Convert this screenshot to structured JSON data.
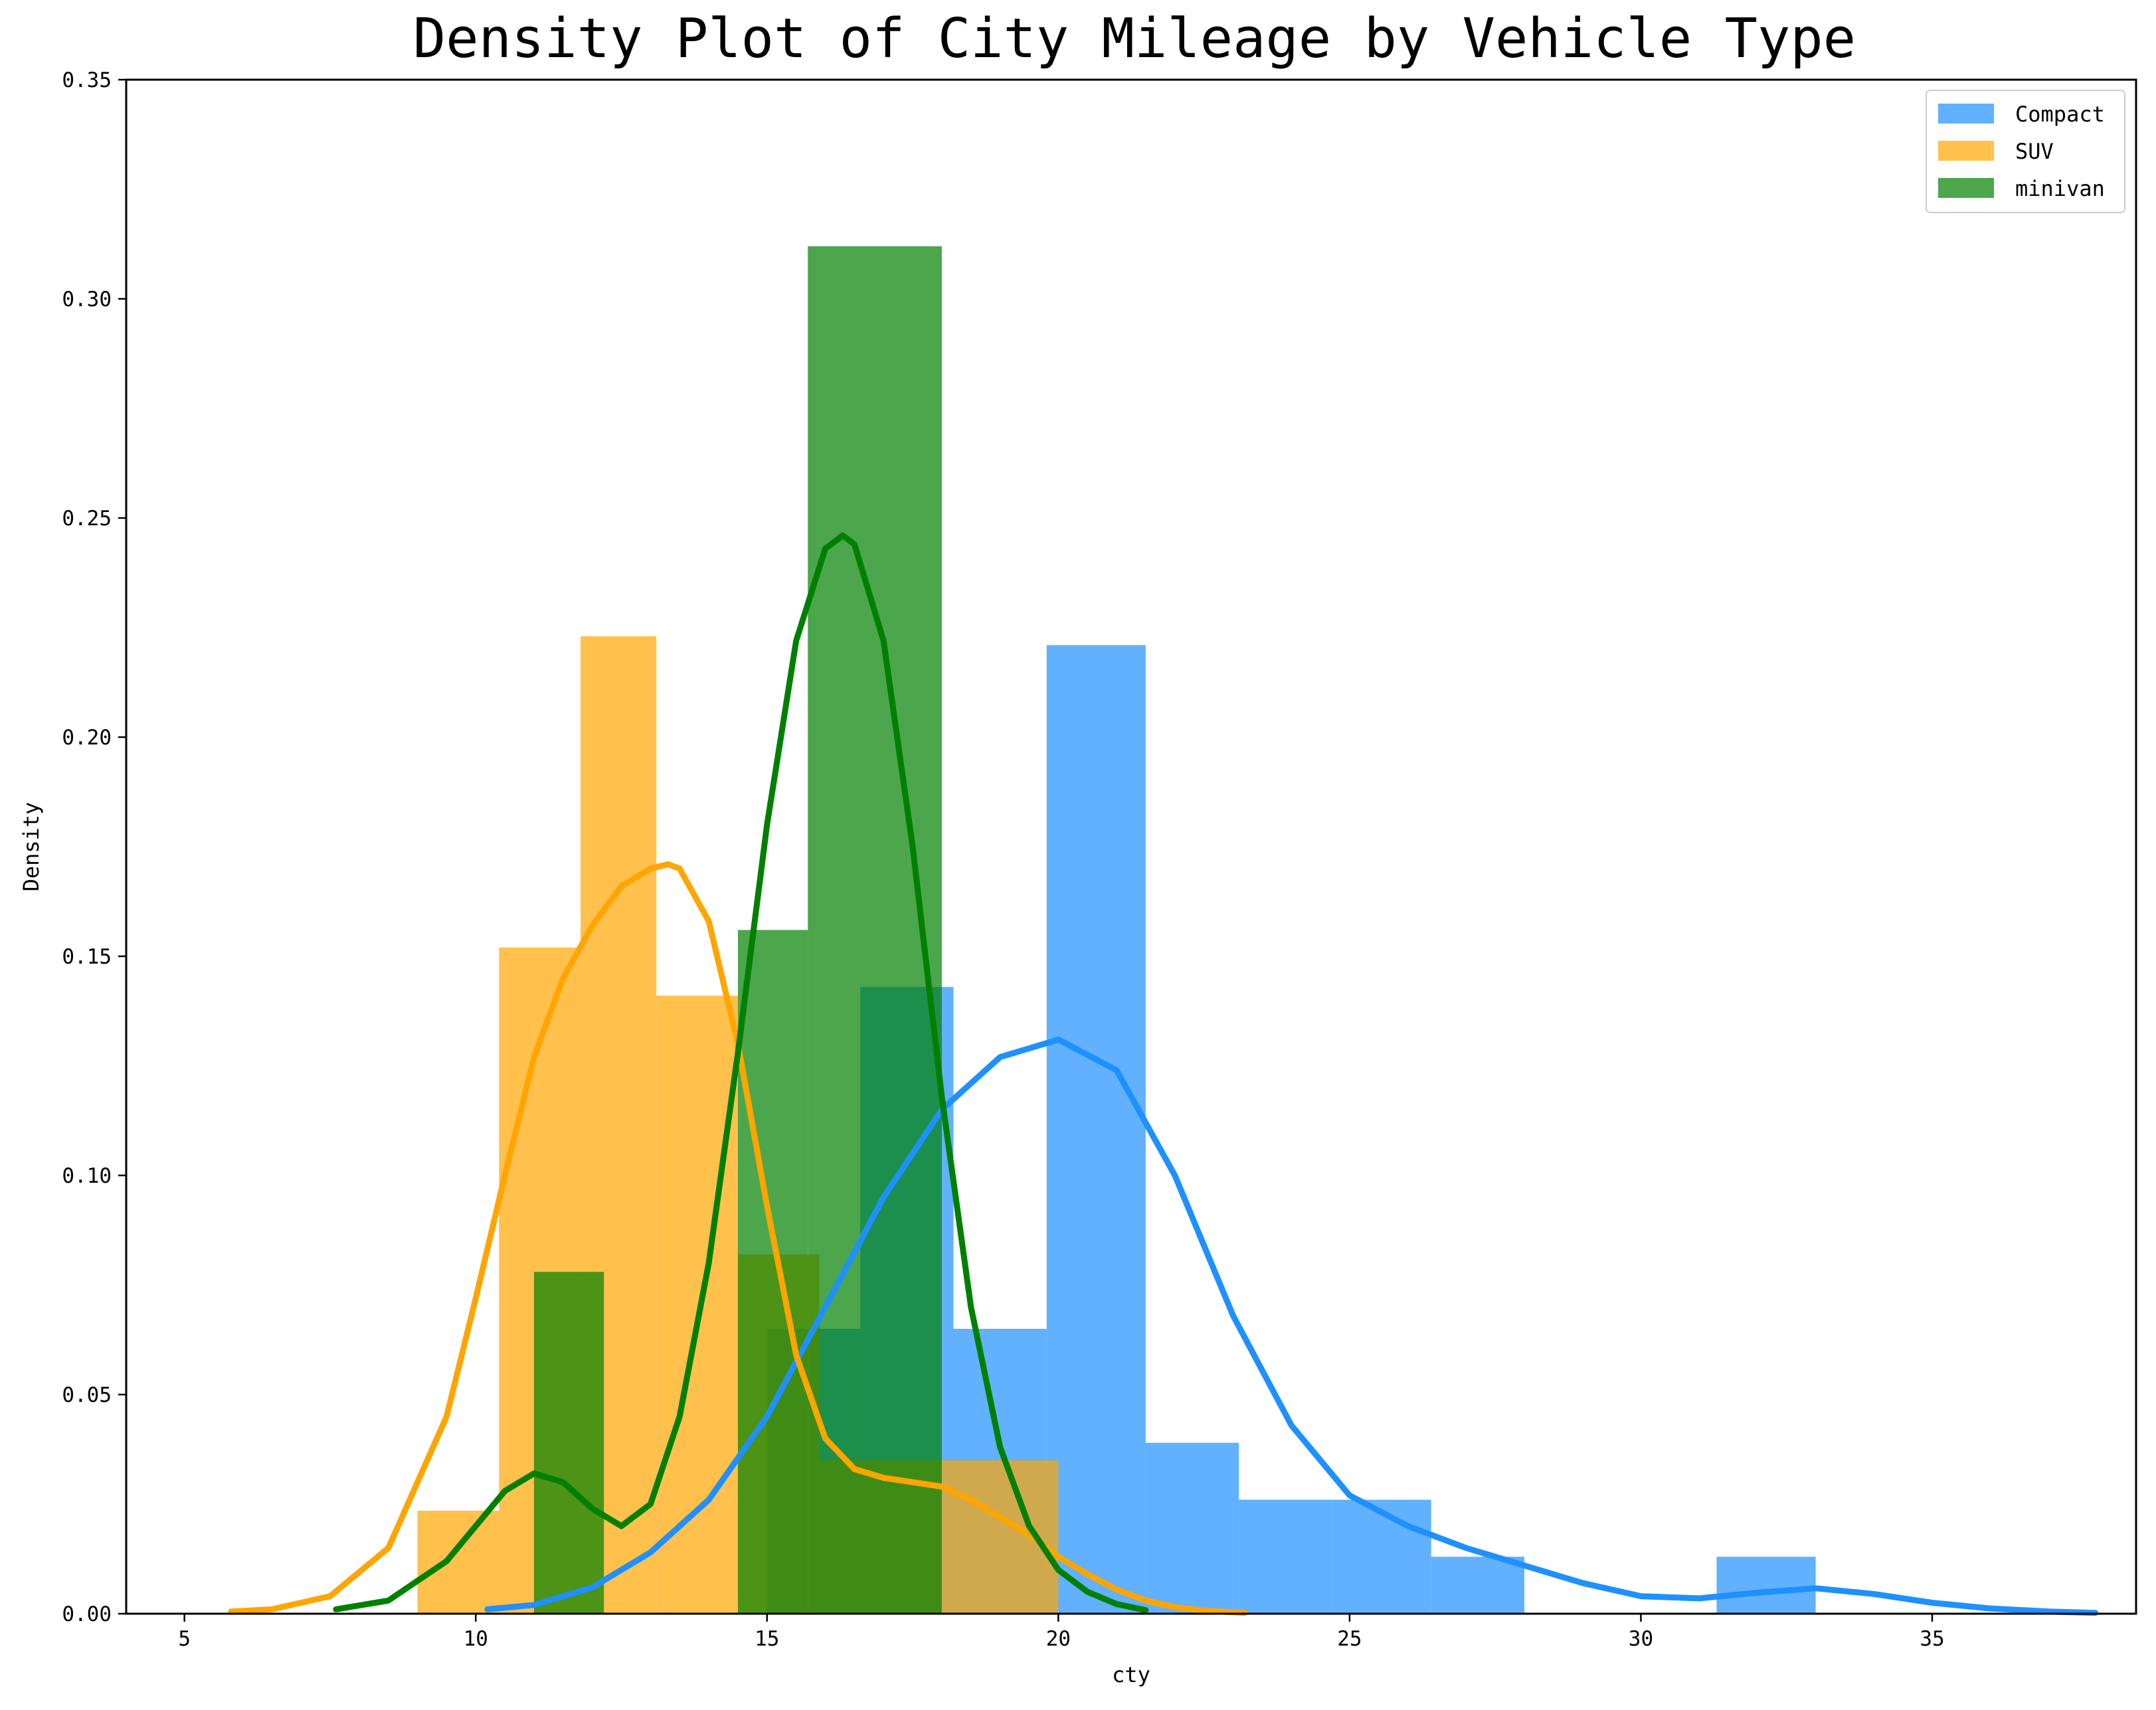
{
  "chart_data": {
    "type": "bar",
    "title": "Density Plot of City Mileage by Vehicle Type",
    "xlabel": "cty",
    "ylabel": "Density",
    "xlim": [
      4,
      38.5
    ],
    "ylim": [
      0,
      0.35
    ],
    "xticks": [
      5,
      10,
      15,
      20,
      25,
      30,
      35
    ],
    "xtick_labels": [
      "5",
      "10",
      "15",
      "20",
      "25",
      "30",
      "35"
    ],
    "yticks": [
      0,
      0.05,
      0.1,
      0.15,
      0.2,
      0.25,
      0.3,
      0.35
    ],
    "ytick_labels": [
      "0.00",
      "0.05",
      "0.10",
      "0.15",
      "0.20",
      "0.25",
      "0.30",
      "0.35"
    ],
    "grid": false,
    "legend_position": "top-right",
    "legend": [
      "Compact",
      "SUV",
      "minivan"
    ],
    "series": [
      {
        "name": "Compact",
        "color": "#1e90ff",
        "hist": [
          {
            "x0": 15.0,
            "x1": 16.6,
            "density": 0.065
          },
          {
            "x0": 16.6,
            "x1": 18.2,
            "density": 0.143
          },
          {
            "x0": 18.2,
            "x1": 19.8,
            "density": 0.065
          },
          {
            "x0": 19.8,
            "x1": 21.5,
            "density": 0.221
          },
          {
            "x0": 21.5,
            "x1": 23.1,
            "density": 0.039
          },
          {
            "x0": 23.1,
            "x1": 24.7,
            "density": 0.026
          },
          {
            "x0": 24.7,
            "x1": 26.4,
            "density": 0.026
          },
          {
            "x0": 26.4,
            "x1": 28.0,
            "density": 0.013
          },
          {
            "x0": 31.3,
            "x1": 33.0,
            "density": 0.013
          }
        ],
        "kde": [
          [
            10.2,
            0.001
          ],
          [
            11.0,
            0.002
          ],
          [
            12.0,
            0.006
          ],
          [
            13.0,
            0.014
          ],
          [
            14.0,
            0.026
          ],
          [
            15.0,
            0.045
          ],
          [
            16.0,
            0.07
          ],
          [
            17.0,
            0.095
          ],
          [
            18.0,
            0.115
          ],
          [
            19.0,
            0.127
          ],
          [
            20.0,
            0.131
          ],
          [
            21.0,
            0.124
          ],
          [
            22.0,
            0.1
          ],
          [
            23.0,
            0.068
          ],
          [
            24.0,
            0.043
          ],
          [
            25.0,
            0.027
          ],
          [
            26.0,
            0.02
          ],
          [
            27.0,
            0.015
          ],
          [
            28.0,
            0.011
          ],
          [
            29.0,
            0.007
          ],
          [
            30.0,
            0.004
          ],
          [
            31.0,
            0.0035
          ],
          [
            32.0,
            0.0048
          ],
          [
            33.0,
            0.0058
          ],
          [
            34.0,
            0.0045
          ],
          [
            35.0,
            0.0025
          ],
          [
            36.0,
            0.0012
          ],
          [
            37.0,
            0.0005
          ],
          [
            37.8,
            0.0002
          ]
        ]
      },
      {
        "name": "SUV",
        "color": "#ffa500",
        "hist": [
          {
            "x0": 9.0,
            "x1": 10.4,
            "density": 0.0235
          },
          {
            "x0": 10.4,
            "x1": 11.8,
            "density": 0.152
          },
          {
            "x0": 11.8,
            "x1": 13.1,
            "density": 0.223
          },
          {
            "x0": 13.1,
            "x1": 14.5,
            "density": 0.141
          },
          {
            "x0": 14.5,
            "x1": 15.9,
            "density": 0.082
          },
          {
            "x0": 15.9,
            "x1": 17.3,
            "density": 0.035
          },
          {
            "x0": 17.3,
            "x1": 18.6,
            "density": 0.035
          },
          {
            "x0": 18.6,
            "x1": 20.0,
            "density": 0.035
          }
        ],
        "kde": [
          [
            5.8,
            0.0005
          ],
          [
            6.5,
            0.001
          ],
          [
            7.5,
            0.004
          ],
          [
            8.5,
            0.015
          ],
          [
            9.5,
            0.045
          ],
          [
            10.0,
            0.072
          ],
          [
            10.5,
            0.1
          ],
          [
            11.0,
            0.127
          ],
          [
            11.5,
            0.145
          ],
          [
            12.0,
            0.157
          ],
          [
            12.5,
            0.166
          ],
          [
            13.0,
            0.17
          ],
          [
            13.3,
            0.171
          ],
          [
            13.5,
            0.17
          ],
          [
            14.0,
            0.158
          ],
          [
            14.5,
            0.13
          ],
          [
            15.0,
            0.093
          ],
          [
            15.5,
            0.059
          ],
          [
            16.0,
            0.04
          ],
          [
            16.5,
            0.033
          ],
          [
            17.0,
            0.031
          ],
          [
            17.5,
            0.03
          ],
          [
            18.0,
            0.029
          ],
          [
            18.5,
            0.026
          ],
          [
            19.0,
            0.022
          ],
          [
            19.5,
            0.018
          ],
          [
            20.0,
            0.013
          ],
          [
            20.5,
            0.009
          ],
          [
            21.0,
            0.0055
          ],
          [
            21.5,
            0.003
          ],
          [
            22.0,
            0.0015
          ],
          [
            22.5,
            0.0007
          ],
          [
            23.2,
            0.0002
          ]
        ]
      },
      {
        "name": "minivan",
        "color": "#008000",
        "hist": [
          {
            "x0": 11.0,
            "x1": 12.2,
            "density": 0.078
          },
          {
            "x0": 14.5,
            "x1": 15.7,
            "density": 0.156
          },
          {
            "x0": 15.7,
            "x1": 18.0,
            "density": 0.312
          }
        ],
        "kde": [
          [
            7.6,
            0.001
          ],
          [
            8.5,
            0.003
          ],
          [
            9.5,
            0.012
          ],
          [
            10.5,
            0.028
          ],
          [
            11.0,
            0.032
          ],
          [
            11.5,
            0.03
          ],
          [
            12.0,
            0.024
          ],
          [
            12.5,
            0.02
          ],
          [
            13.0,
            0.025
          ],
          [
            13.5,
            0.045
          ],
          [
            14.0,
            0.08
          ],
          [
            14.5,
            0.128
          ],
          [
            15.0,
            0.18
          ],
          [
            15.5,
            0.222
          ],
          [
            16.0,
            0.243
          ],
          [
            16.3,
            0.246
          ],
          [
            16.5,
            0.244
          ],
          [
            17.0,
            0.222
          ],
          [
            17.5,
            0.175
          ],
          [
            18.0,
            0.118
          ],
          [
            18.5,
            0.07
          ],
          [
            19.0,
            0.038
          ],
          [
            19.5,
            0.02
          ],
          [
            20.0,
            0.01
          ],
          [
            20.5,
            0.005
          ],
          [
            21.0,
            0.0022
          ],
          [
            21.5,
            0.0008
          ]
        ]
      }
    ]
  }
}
